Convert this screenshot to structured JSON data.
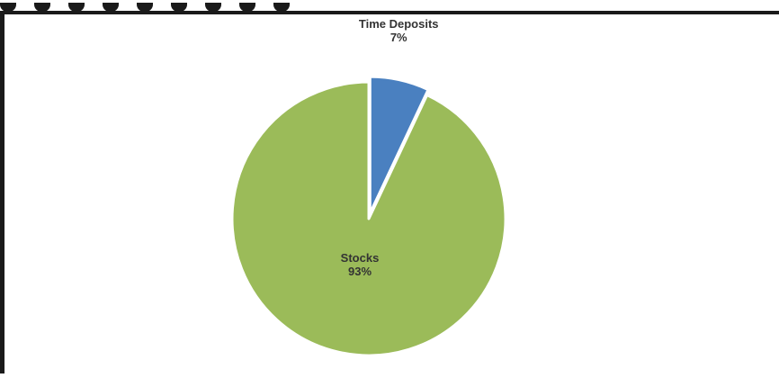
{
  "chart_data": {
    "type": "pie",
    "title": "",
    "slices": [
      {
        "label": "Time Deposits",
        "value": 7,
        "display": "7%",
        "color": "#4a80c0",
        "exploded": true
      },
      {
        "label": "Stocks",
        "value": 93,
        "display": "93%",
        "color": "#9bbb59",
        "exploded": false
      }
    ],
    "legend": "none",
    "label_position": "inside/outside",
    "start_angle_deg": 0
  }
}
